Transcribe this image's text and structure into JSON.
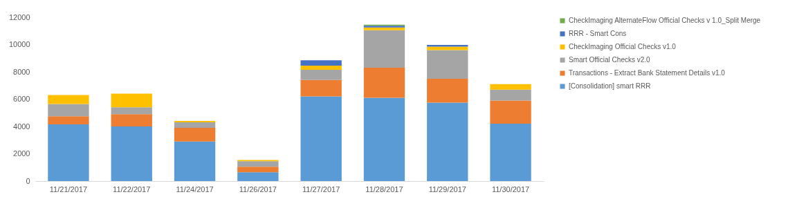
{
  "chart_data": {
    "type": "bar",
    "stacked": true,
    "categories": [
      "11/21/2017",
      "11/22/2017",
      "11/24/2017",
      "11/26/2017",
      "11/27/2017",
      "11/28/2017",
      "11/29/2017",
      "11/30/2017"
    ],
    "series": [
      {
        "name": "[Consolidation] smart RRR",
        "color": "#5b9bd5",
        "values": [
          4150,
          4000,
          2900,
          650,
          6200,
          6100,
          5750,
          4200
        ]
      },
      {
        "name": "Transactions -  Extract Bank Statement Details v1.0",
        "color": "#ed7d31",
        "values": [
          600,
          900,
          1000,
          400,
          1200,
          2200,
          1750,
          1700
        ]
      },
      {
        "name": "Smart Official Checks v2.0",
        "color": "#a5a5a5",
        "values": [
          900,
          500,
          400,
          400,
          750,
          2750,
          2100,
          800
        ]
      },
      {
        "name": "CheckImaging Official Checks v1.0",
        "color": "#ffc000",
        "values": [
          650,
          1000,
          100,
          100,
          300,
          200,
          250,
          400
        ]
      },
      {
        "name": "RRR - Smart Cons",
        "color": "#4472c4",
        "values": [
          0,
          0,
          0,
          0,
          400,
          130,
          130,
          0
        ]
      },
      {
        "name": "CheckImaging AlternateFlow Official Checks v 1.0_Split Merge",
        "color": "#70ad47",
        "values": [
          0,
          0,
          0,
          0,
          0,
          70,
          0,
          0
        ]
      }
    ],
    "ylim": [
      0,
      12000
    ],
    "yticks": [
      0,
      2000,
      4000,
      6000,
      8000,
      10000,
      12000
    ],
    "grid": false,
    "legend": "right"
  }
}
